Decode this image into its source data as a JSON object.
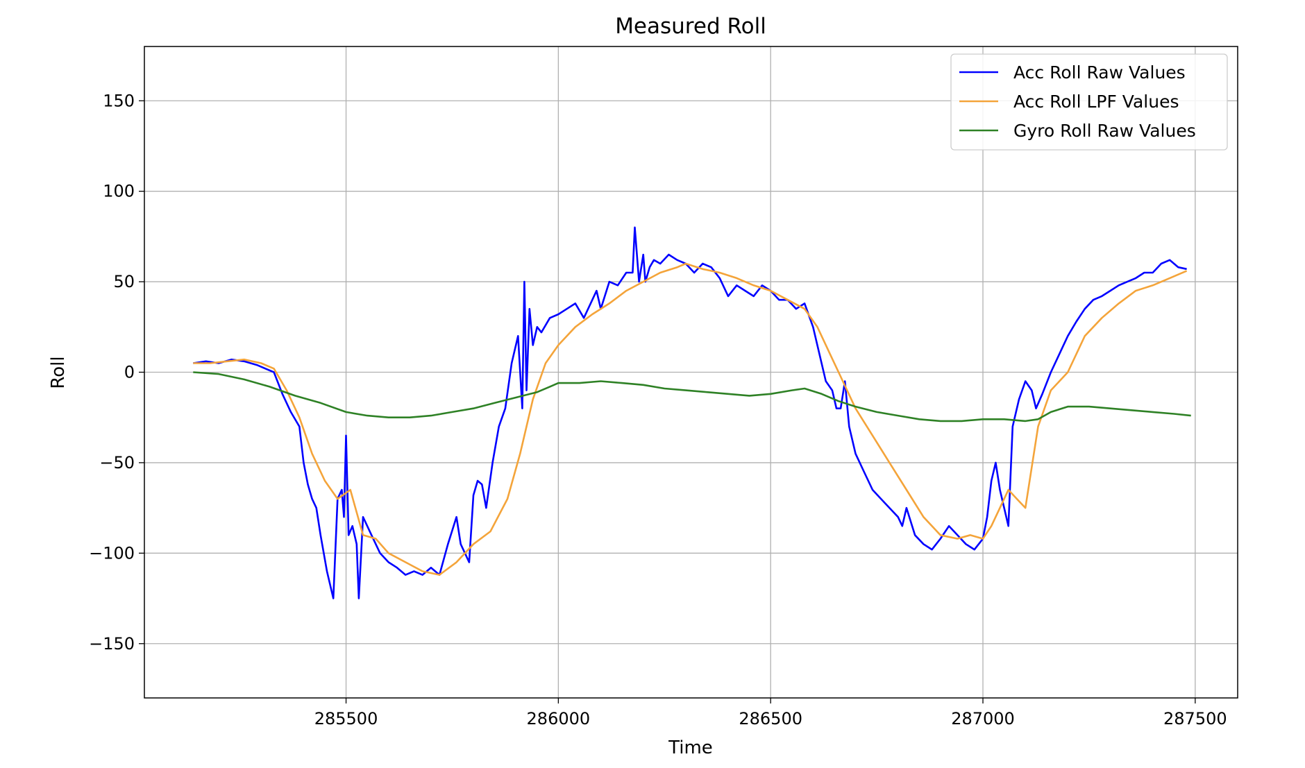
{
  "chart_data": {
    "type": "line",
    "title": "Measured Roll",
    "xlabel": "Time",
    "ylabel": "Roll",
    "xlim": [
      285025,
      287600
    ],
    "ylim": [
      -180,
      180
    ],
    "xticks": [
      285500,
      286000,
      286500,
      287000,
      287500
    ],
    "yticks": [
      150,
      100,
      50,
      0,
      -50,
      -100,
      -150
    ],
    "ytick_labels": [
      "150",
      "100",
      "50",
      "0",
      "−50",
      "−100",
      "−150"
    ],
    "grid": true,
    "legend_position": "top-right",
    "series": [
      {
        "name": "Acc Roll Raw Values",
        "color": "#0000ff",
        "x": [
          285140,
          285170,
          285200,
          285230,
          285260,
          285290,
          285310,
          285330,
          285350,
          285370,
          285390,
          285400,
          285410,
          285420,
          285430,
          285440,
          285455,
          285470,
          285480,
          285490,
          285495,
          285500,
          285506,
          285515,
          285525,
          285530,
          285540,
          285560,
          285580,
          285600,
          285620,
          285640,
          285660,
          285680,
          285700,
          285720,
          285740,
          285760,
          285770,
          285780,
          285790,
          285800,
          285810,
          285820,
          285830,
          285845,
          285860,
          285875,
          285890,
          285905,
          285915,
          285920,
          285925,
          285932,
          285940,
          285950,
          285960,
          285980,
          286000,
          286020,
          286040,
          286060,
          286080,
          286090,
          286100,
          286120,
          286140,
          286160,
          286175,
          286180,
          286190,
          286200,
          286205,
          286215,
          286225,
          286240,
          286260,
          286280,
          286300,
          286320,
          286340,
          286360,
          286380,
          286400,
          286420,
          286440,
          286460,
          286480,
          286500,
          286520,
          286540,
          286560,
          286580,
          286600,
          286615,
          286630,
          286645,
          286655,
          286665,
          286675,
          286685,
          286700,
          286720,
          286740,
          286760,
          286780,
          286800,
          286810,
          286820,
          286840,
          286860,
          286880,
          286900,
          286920,
          286940,
          286960,
          286980,
          286990,
          287000,
          287010,
          287020,
          287030,
          287040,
          287050,
          287060,
          287070,
          287085,
          287100,
          287115,
          287125,
          287140,
          287160,
          287180,
          287200,
          287220,
          287240,
          287260,
          287280,
          287300,
          287320,
          287340,
          287360,
          287380,
          287400,
          287420,
          287440,
          287460,
          287480
        ],
        "y": [
          5,
          6,
          5,
          7,
          6,
          4,
          2,
          0,
          -12,
          -22,
          -30,
          -50,
          -62,
          -70,
          -75,
          -90,
          -110,
          -125,
          -70,
          -65,
          -80,
          -35,
          -90,
          -85,
          -95,
          -125,
          -80,
          -90,
          -100,
          -105,
          -108,
          -112,
          -110,
          -112,
          -108,
          -112,
          -95,
          -80,
          -95,
          -100,
          -105,
          -68,
          -60,
          -62,
          -75,
          -50,
          -30,
          -20,
          5,
          20,
          -20,
          50,
          -10,
          35,
          15,
          25,
          22,
          30,
          32,
          35,
          38,
          30,
          40,
          45,
          35,
          50,
          48,
          55,
          55,
          80,
          50,
          65,
          50,
          58,
          62,
          60,
          65,
          62,
          60,
          55,
          60,
          58,
          52,
          42,
          48,
          45,
          42,
          48,
          45,
          40,
          40,
          35,
          38,
          25,
          10,
          -5,
          -10,
          -20,
          -20,
          -5,
          -30,
          -45,
          -55,
          -65,
          -70,
          -75,
          -80,
          -85,
          -75,
          -90,
          -95,
          -98,
          -92,
          -85,
          -90,
          -95,
          -98,
          -95,
          -92,
          -80,
          -60,
          -50,
          -65,
          -75,
          -85,
          -30,
          -15,
          -5,
          -10,
          -20,
          -12,
          0,
          10,
          20,
          28,
          35,
          40,
          42,
          45,
          48,
          50,
          52,
          55,
          55,
          60,
          62,
          58,
          57
        ]
      },
      {
        "name": "Acc Roll LPF Values",
        "color": "#f4a43a",
        "x": [
          285140,
          285180,
          285220,
          285260,
          285300,
          285330,
          285360,
          285390,
          285420,
          285450,
          285480,
          285510,
          285540,
          285570,
          285600,
          285640,
          285680,
          285720,
          285760,
          285800,
          285840,
          285880,
          285910,
          285940,
          285970,
          286000,
          286040,
          286080,
          286120,
          286160,
          286200,
          286240,
          286280,
          286300,
          286340,
          286380,
          286420,
          286460,
          286500,
          286540,
          286580,
          286610,
          286640,
          286670,
          286700,
          286740,
          286780,
          286820,
          286860,
          286900,
          286940,
          286970,
          287000,
          287020,
          287040,
          287060,
          287080,
          287100,
          287130,
          287160,
          287200,
          287240,
          287280,
          287320,
          287360,
          287400,
          287440,
          287480
        ],
        "y": [
          5,
          5,
          6,
          7,
          5,
          2,
          -10,
          -25,
          -45,
          -60,
          -70,
          -65,
          -90,
          -92,
          -100,
          -105,
          -110,
          -112,
          -105,
          -95,
          -88,
          -70,
          -45,
          -15,
          5,
          15,
          25,
          32,
          38,
          45,
          50,
          55,
          58,
          60,
          57,
          55,
          52,
          48,
          45,
          40,
          35,
          25,
          10,
          -5,
          -20,
          -35,
          -50,
          -65,
          -80,
          -90,
          -92,
          -90,
          -92,
          -85,
          -75,
          -65,
          -70,
          -75,
          -30,
          -10,
          0,
          20,
          30,
          38,
          45,
          48,
          52,
          56
        ]
      },
      {
        "name": "Gyro Roll Raw Values",
        "color": "#2e8125",
        "x": [
          285140,
          285200,
          285260,
          285320,
          285380,
          285440,
          285500,
          285550,
          285600,
          285650,
          285700,
          285750,
          285800,
          285850,
          285900,
          285950,
          285980,
          286000,
          286050,
          286100,
          286150,
          286200,
          286250,
          286300,
          286350,
          286400,
          286450,
          286500,
          286550,
          286580,
          286620,
          286660,
          286700,
          286750,
          286800,
          286850,
          286900,
          286950,
          287000,
          287050,
          287100,
          287130,
          287160,
          287200,
          287250,
          287300,
          287350,
          287400,
          287450,
          287490
        ],
        "y": [
          0,
          -1,
          -4,
          -8,
          -13,
          -17,
          -22,
          -24,
          -25,
          -25,
          -24,
          -22,
          -20,
          -17,
          -14,
          -11,
          -8,
          -6,
          -6,
          -5,
          -6,
          -7,
          -9,
          -10,
          -11,
          -12,
          -13,
          -12,
          -10,
          -9,
          -12,
          -16,
          -19,
          -22,
          -24,
          -26,
          -27,
          -27,
          -26,
          -26,
          -27,
          -26,
          -22,
          -19,
          -19,
          -20,
          -21,
          -22,
          -23,
          -24
        ]
      }
    ]
  }
}
